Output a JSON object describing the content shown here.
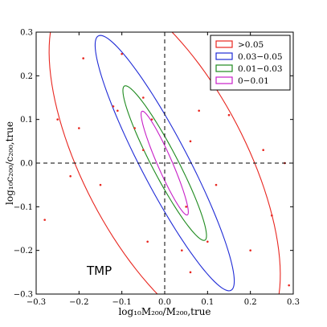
{
  "chart_data": {
    "type": "scatter",
    "xlabel": "log₁₀M₂₀₀/M₂₀₀,true",
    "ylabel": "log₁₀c₂₀₀/c₂₀₀,true",
    "xlim": [
      -0.3,
      0.3
    ],
    "ylim": [
      -0.3,
      0.3
    ],
    "xticks": [
      "−0.3",
      "−0.2",
      "−0.1",
      "0.0",
      "0.1",
      "0.2",
      "0.3"
    ],
    "yticks": [
      "0.3",
      "0.2",
      "0.1",
      "0.0",
      "−0.1",
      "−0.2",
      "−0.3"
    ],
    "reference_lines": {
      "x": 0,
      "y": 0,
      "style": "dashed"
    },
    "annotation": "TMP",
    "legend_position": "top-right",
    "series": [
      {
        "name": ">0.05",
        "color": "#e8261f",
        "ellipse": {
          "cx": 0.0,
          "cy": 0.0,
          "semi_major": 0.45,
          "semi_minor": 0.19,
          "angle_deg": -62
        },
        "points": [
          [
            -0.28,
            -0.13
          ],
          [
            -0.25,
            0.1
          ],
          [
            -0.22,
            -0.03
          ],
          [
            -0.2,
            0.08
          ],
          [
            -0.19,
            0.24
          ],
          [
            -0.15,
            -0.05
          ],
          [
            -0.12,
            0.13
          ],
          [
            -0.1,
            0.25
          ],
          [
            -0.07,
            0.08
          ],
          [
            -0.05,
            0.15
          ],
          [
            -0.05,
            0.03
          ],
          [
            -0.04,
            -0.18
          ],
          [
            -0.03,
            0.1
          ],
          [
            0.05,
            -0.1
          ],
          [
            0.06,
            0.05
          ],
          [
            0.08,
            0.12
          ],
          [
            0.1,
            -0.18
          ],
          [
            0.12,
            -0.05
          ],
          [
            0.15,
            0.11
          ],
          [
            0.18,
            0.17
          ],
          [
            0.2,
            -0.2
          ],
          [
            0.22,
            0.25
          ],
          [
            0.23,
            0.03
          ],
          [
            0.25,
            -0.12
          ],
          [
            0.28,
            0.0
          ],
          [
            0.29,
            -0.28
          ],
          [
            -0.11,
            0.12
          ],
          [
            0.04,
            -0.2
          ],
          [
            0.06,
            -0.25
          ]
        ]
      },
      {
        "name": "0.03−0.05",
        "color": "#1f2bd6",
        "ellipse": {
          "cx": 0.0,
          "cy": 0.0,
          "semi_major": 0.33,
          "semi_minor": 0.055,
          "angle_deg": -62
        },
        "points": []
      },
      {
        "name": "0.01−0.03",
        "color": "#1e8a1e",
        "ellipse": {
          "cx": 0.0,
          "cy": 0.0,
          "semi_major": 0.2,
          "semi_minor": 0.03,
          "angle_deg": -62
        },
        "points": []
      },
      {
        "name": "0−0.01",
        "color": "#c71fc7",
        "ellipse": {
          "cx": 0.0,
          "cy": 0.0,
          "semi_major": 0.13,
          "semi_minor": 0.017,
          "angle_deg": -66
        },
        "points": []
      }
    ]
  }
}
